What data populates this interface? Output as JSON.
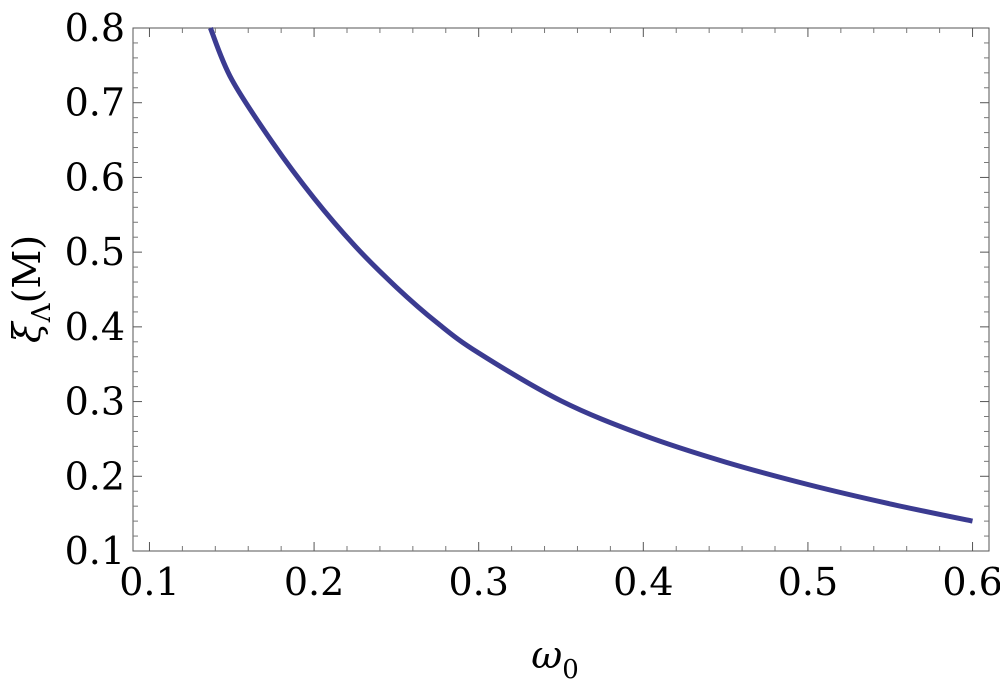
{
  "chart_data": {
    "type": "line",
    "title": "",
    "xlabel": "ω0",
    "xlabel_main": "ω",
    "xlabel_sub": "0",
    "ylabel": "ξΛ(M)",
    "ylabel_main": "ξ",
    "ylabel_sub": "Λ",
    "ylabel_suffix": "(M)",
    "xlim": [
      0.09,
      0.61
    ],
    "ylim": [
      0.1,
      0.8
    ],
    "xticks": [
      "0.1",
      "0.2",
      "0.3",
      "0.4",
      "0.5",
      "0.6"
    ],
    "yticks": [
      "0.1",
      "0.2",
      "0.3",
      "0.4",
      "0.5",
      "0.6",
      "0.7",
      "0.8"
    ],
    "grid": false,
    "series": [
      {
        "color": "#3b3b91",
        "x": [
          0.137,
          0.15,
          0.175,
          0.2,
          0.225,
          0.25,
          0.275,
          0.3,
          0.35,
          0.4,
          0.45,
          0.5,
          0.55,
          0.6
        ],
        "y": [
          0.8,
          0.731,
          0.646,
          0.572,
          0.508,
          0.453,
          0.405,
          0.365,
          0.301,
          0.255,
          0.219,
          0.189,
          0.163,
          0.14
        ]
      }
    ]
  }
}
